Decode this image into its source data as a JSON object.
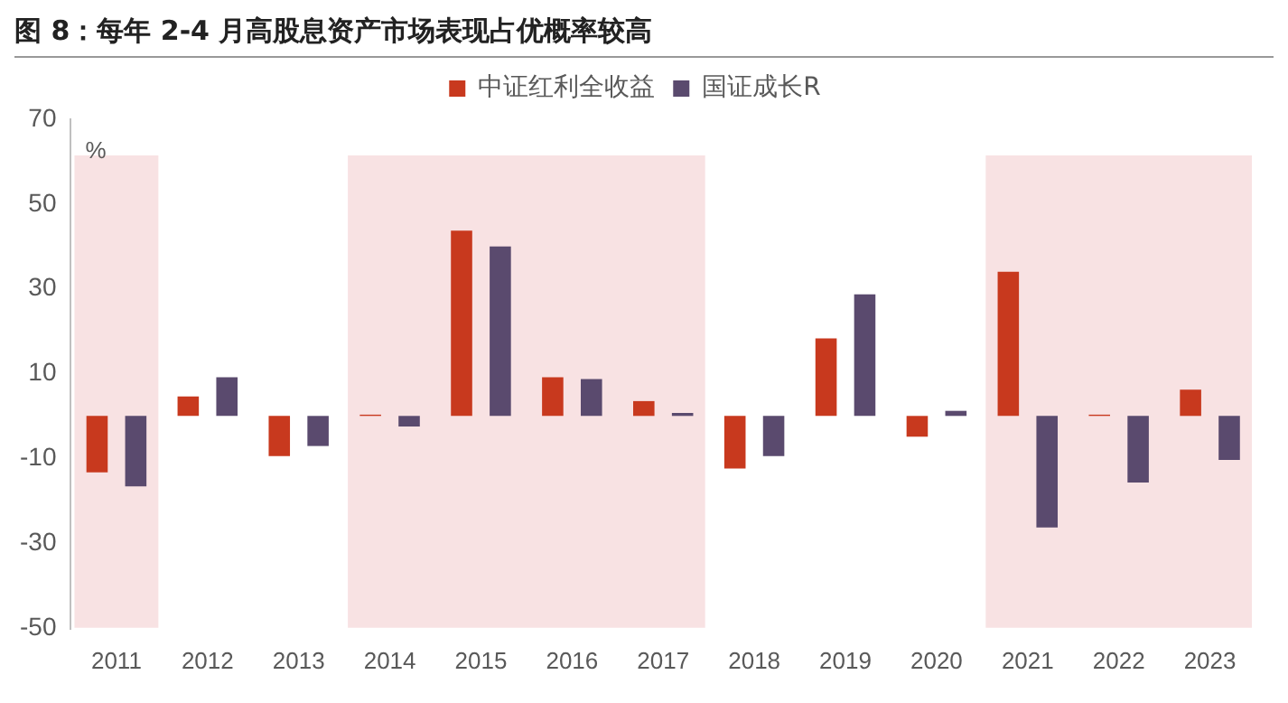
{
  "chart_data": {
    "type": "bar",
    "title": "图 8：每年 2-4 月高股息资产市场表现占优概率较高",
    "ylabel": "%",
    "categories": [
      "2011",
      "2012",
      "2013",
      "2014",
      "2015",
      "2016",
      "2017",
      "2018",
      "2019",
      "2020",
      "2021",
      "2022",
      "2023"
    ],
    "series": [
      {
        "name": "中证红利全收益",
        "color": "#c8391e",
        "values": [
          -13.3,
          4.6,
          -9.5,
          0.3,
          43.7,
          9.1,
          3.5,
          -12.4,
          18.3,
          -4.9,
          34.0,
          0.3,
          6.2
        ]
      },
      {
        "name": "国证成长R",
        "color": "#5a4a6e",
        "values": [
          -16.6,
          9.1,
          -7.1,
          -2.5,
          40.0,
          8.7,
          0.7,
          -9.5,
          28.7,
          1.2,
          -26.3,
          -15.7,
          -10.4
        ]
      }
    ],
    "ylim": [
      -50,
      70
    ],
    "yticks": [
      -50,
      -30,
      -10,
      10,
      30,
      50,
      70
    ],
    "bands": [
      {
        "axis": "x",
        "from": "2011",
        "to": "2011",
        "color": "#f8e2e3"
      },
      {
        "axis": "x",
        "from": "2014",
        "to": "2017",
        "color": "#f8e2e3"
      },
      {
        "axis": "x",
        "from": "2021",
        "to": "2023",
        "color": "#f8e2e3"
      }
    ],
    "grid": false,
    "legend": "top"
  }
}
